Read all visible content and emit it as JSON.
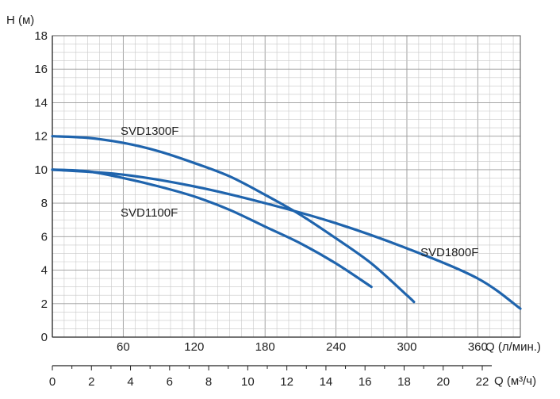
{
  "chart_data": {
    "type": "line",
    "ylabel": "H (м)",
    "xlabel": "Q (л/мин.)",
    "x2label": "Q (м³/ч)",
    "ylim": [
      0,
      18
    ],
    "xlim": [
      0,
      396
    ],
    "yticks": [
      0,
      2,
      4,
      6,
      8,
      10,
      12,
      14,
      16,
      18
    ],
    "xticks": [
      60,
      120,
      180,
      240,
      300,
      360
    ],
    "x2ticks": [
      0,
      2,
      4,
      6,
      8,
      10,
      12,
      14,
      16,
      18,
      20,
      22
    ],
    "grid": true,
    "colors": {
      "curve": "#1f64ad",
      "grid": "#c8c8c8",
      "axis": "#222222"
    },
    "series": [
      {
        "name": "SVD1100F",
        "x": [
          0,
          30,
          60,
          90,
          120,
          150,
          180,
          210,
          240,
          270
        ],
        "y": [
          10.0,
          9.9,
          9.5,
          9.0,
          8.4,
          7.6,
          6.6,
          5.6,
          4.4,
          3.0
        ]
      },
      {
        "name": "SVD1300F",
        "x": [
          0,
          30,
          60,
          90,
          120,
          150,
          180,
          210,
          240,
          270,
          300,
          306
        ],
        "y": [
          12.0,
          11.9,
          11.6,
          11.1,
          10.4,
          9.6,
          8.5,
          7.3,
          5.9,
          4.4,
          2.5,
          2.1
        ]
      },
      {
        "name": "SVD1800F",
        "x": [
          0,
          60,
          120,
          180,
          240,
          300,
          360,
          396
        ],
        "y": [
          10.0,
          9.7,
          9.0,
          8.0,
          6.8,
          5.3,
          3.5,
          1.7
        ]
      }
    ],
    "series_labels": [
      {
        "text": "SVD1300F"
      },
      {
        "text": "SVD1100F"
      },
      {
        "text": "SVD1800F"
      }
    ]
  }
}
